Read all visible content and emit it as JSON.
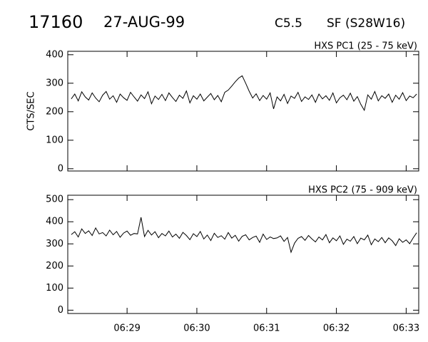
{
  "header": {
    "number": "17160",
    "date": "27-AUG-99",
    "class": "C5.5",
    "flare": "SF (S28W16)"
  },
  "chart_data": [
    {
      "type": "line",
      "title": "HXS PC1 (25 - 75 keV)",
      "y_label": "CTS/SEC",
      "color": "#000000",
      "x": [
        28.2,
        28.25,
        28.3,
        28.35,
        28.4,
        28.45,
        28.5,
        28.55,
        28.6,
        28.65,
        28.7,
        28.75,
        28.8,
        28.85,
        28.9,
        28.95,
        29.0,
        29.05,
        29.1,
        29.15,
        29.2,
        29.25,
        29.3,
        29.35,
        29.4,
        29.45,
        29.5,
        29.55,
        29.6,
        29.65,
        29.7,
        29.75,
        29.8,
        29.85,
        29.9,
        29.95,
        30.0,
        30.05,
        30.1,
        30.15,
        30.2,
        30.25,
        30.3,
        30.35,
        30.4,
        30.45,
        30.5,
        30.55,
        30.6,
        30.65,
        30.7,
        30.75,
        30.8,
        30.85,
        30.9,
        30.95,
        31.0,
        31.05,
        31.1,
        31.15,
        31.2,
        31.25,
        31.3,
        31.35,
        31.4,
        31.45,
        31.5,
        31.55,
        31.6,
        31.65,
        31.7,
        31.75,
        31.8,
        31.85,
        31.9,
        31.95,
        32.0,
        32.05,
        32.1,
        32.15,
        32.2,
        32.25,
        32.3,
        32.35,
        32.4,
        32.45,
        32.5,
        32.55,
        32.6,
        32.65,
        32.7,
        32.75,
        32.8,
        32.85,
        32.9,
        32.95,
        33.0,
        33.05,
        33.1,
        33.15
      ],
      "values": [
        245,
        262,
        238,
        270,
        252,
        241,
        266,
        248,
        235,
        258,
        271,
        244,
        256,
        233,
        262,
        249,
        240,
        268,
        252,
        237,
        259,
        246,
        270,
        228,
        255,
        243,
        261,
        239,
        266,
        250,
        236,
        258,
        247,
        273,
        231,
        256,
        244,
        262,
        238,
        251,
        264,
        242,
        257,
        235,
        268,
        276,
        290,
        305,
        318,
        326,
        300,
        272,
        248,
        263,
        239,
        257,
        244,
        266,
        210,
        252,
        238,
        261,
        229,
        255,
        247,
        268,
        236,
        252,
        243,
        259,
        233,
        262,
        245,
        256,
        240,
        266,
        231,
        249,
        258,
        242,
        265,
        237,
        253,
        226,
        205,
        259,
        244,
        271,
        238,
        256,
        247,
        262,
        233,
        258,
        244,
        267,
        239,
        255,
        249,
        262
      ],
      "xlim": [
        28.15,
        33.18
      ],
      "xticks": [
        29,
        30,
        31,
        32,
        33
      ],
      "ylim": [
        -8,
        412
      ],
      "yticks": [
        0,
        100,
        200,
        300,
        400
      ]
    },
    {
      "type": "line",
      "title": "HXS PC2 (75 - 909 keV)",
      "color": "#000000",
      "x": [
        28.2,
        28.25,
        28.3,
        28.35,
        28.4,
        28.45,
        28.5,
        28.55,
        28.6,
        28.65,
        28.7,
        28.75,
        28.8,
        28.85,
        28.9,
        28.95,
        29.0,
        29.05,
        29.1,
        29.15,
        29.2,
        29.25,
        29.3,
        29.35,
        29.4,
        29.45,
        29.5,
        29.55,
        29.6,
        29.65,
        29.7,
        29.75,
        29.8,
        29.85,
        29.9,
        29.95,
        30.0,
        30.05,
        30.1,
        30.15,
        30.2,
        30.25,
        30.3,
        30.35,
        30.4,
        30.45,
        30.5,
        30.55,
        30.6,
        30.65,
        30.7,
        30.75,
        30.8,
        30.85,
        30.9,
        30.95,
        31.0,
        31.05,
        31.1,
        31.15,
        31.2,
        31.25,
        31.3,
        31.35,
        31.4,
        31.45,
        31.5,
        31.55,
        31.6,
        31.65,
        31.7,
        31.75,
        31.8,
        31.85,
        31.9,
        31.95,
        32.0,
        32.05,
        32.1,
        32.15,
        32.2,
        32.25,
        32.3,
        32.35,
        32.4,
        32.45,
        32.5,
        32.55,
        32.6,
        32.65,
        32.7,
        32.75,
        32.8,
        32.85,
        32.9,
        32.95,
        33.0,
        33.05,
        33.1,
        33.15
      ],
      "values": [
        342,
        355,
        331,
        368,
        347,
        359,
        338,
        372,
        345,
        351,
        336,
        362,
        341,
        356,
        330,
        349,
        358,
        339,
        347,
        345,
        420,
        333,
        361,
        340,
        355,
        328,
        347,
        336,
        358,
        331,
        344,
        325,
        352,
        338,
        319,
        346,
        333,
        356,
        322,
        340,
        315,
        348,
        329,
        337,
        321,
        351,
        326,
        339,
        312,
        334,
        341,
        318,
        329,
        335,
        307,
        344,
        320,
        331,
        324,
        327,
        336,
        311,
        329,
        262,
        303,
        325,
        333,
        316,
        338,
        322,
        309,
        331,
        318,
        342,
        305,
        327,
        314,
        336,
        298,
        321,
        312,
        333,
        301,
        326,
        318,
        340,
        296,
        322,
        310,
        329,
        305,
        327,
        314,
        292,
        323,
        307,
        318,
        301,
        327,
        350
      ],
      "xlim": [
        28.15,
        33.18
      ],
      "xticks": [
        {
          "value": 29,
          "label": "06:29"
        },
        {
          "value": 30,
          "label": "06:30"
        },
        {
          "value": 31,
          "label": "06:31"
        },
        {
          "value": 32,
          "label": "06:32"
        },
        {
          "value": 33,
          "label": "06:33"
        }
      ],
      "ylim": [
        -15,
        520
      ],
      "yticks": [
        0,
        100,
        200,
        300,
        400,
        500
      ]
    }
  ]
}
